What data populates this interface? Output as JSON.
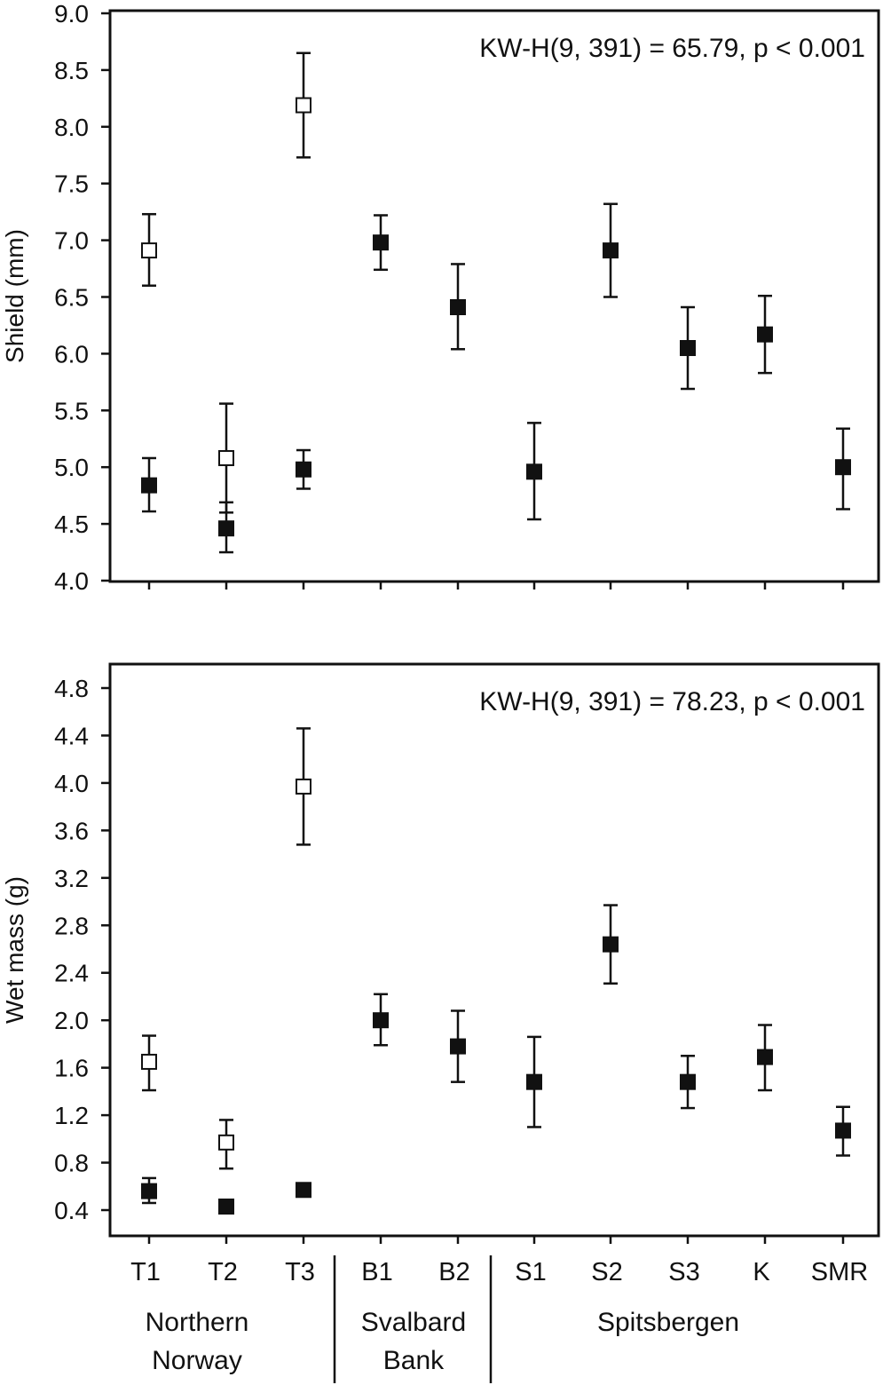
{
  "chart_data": [
    {
      "type": "scatter",
      "ylabel": "Shield (mm)",
      "ylim": [
        4.0,
        9.0
      ],
      "yticks": [
        "9.0",
        "8.5",
        "8.0",
        "7.5",
        "7.0",
        "6.5",
        "6.0",
        "5.5",
        "5.0",
        "4.5",
        "4.0"
      ],
      "annotation": "KW-H(9, 391) = 65.79, p < 0.001",
      "categories": [
        "T1",
        "T2",
        "T3",
        "B1",
        "B2",
        "S1",
        "S2",
        "S3",
        "K",
        "SMR"
      ],
      "series": [
        {
          "marker": "filled-square",
          "points": [
            {
              "x": "T1",
              "y": 4.84,
              "lo": 4.61,
              "hi": 5.08
            },
            {
              "x": "T2",
              "y": 4.46,
              "lo": 4.25,
              "hi": 4.69
            },
            {
              "x": "T3",
              "y": 4.98,
              "lo": 4.81,
              "hi": 5.15
            },
            {
              "x": "B1",
              "y": 6.98,
              "lo": 6.74,
              "hi": 7.22
            },
            {
              "x": "B2",
              "y": 6.41,
              "lo": 6.04,
              "hi": 6.79
            },
            {
              "x": "S1",
              "y": 4.96,
              "lo": 4.54,
              "hi": 5.39
            },
            {
              "x": "S2",
              "y": 6.91,
              "lo": 6.5,
              "hi": 7.32
            },
            {
              "x": "S3",
              "y": 6.05,
              "lo": 5.69,
              "hi": 6.41
            },
            {
              "x": "K",
              "y": 6.17,
              "lo": 5.83,
              "hi": 6.51
            },
            {
              "x": "SMR",
              "y": 5.0,
              "lo": 4.63,
              "hi": 5.34
            }
          ]
        },
        {
          "marker": "open-square",
          "points": [
            {
              "x": "T1",
              "y": 6.91,
              "lo": 6.6,
              "hi": 7.23
            },
            {
              "x": "T2",
              "y": 5.08,
              "lo": 4.6,
              "hi": 5.56
            },
            {
              "x": "T3",
              "y": 8.19,
              "lo": 7.73,
              "hi": 8.65
            }
          ]
        }
      ]
    },
    {
      "type": "scatter",
      "ylabel": "Wet mass (g)",
      "ylim": [
        0.2,
        5.0
      ],
      "yticks": [
        "4.8",
        "4.4",
        "4.0",
        "3.6",
        "3.2",
        "2.8",
        "2.4",
        "2.0",
        "1.6",
        "1.2",
        "0.8",
        "0.4"
      ],
      "annotation": "KW-H(9, 391) = 78.23, p < 0.001",
      "categories": [
        "T1",
        "T2",
        "T3",
        "B1",
        "B2",
        "S1",
        "S2",
        "S3",
        "K",
        "SMR"
      ],
      "series": [
        {
          "marker": "filled-square",
          "points": [
            {
              "x": "T1",
              "y": 0.56,
              "lo": 0.46,
              "hi": 0.67
            },
            {
              "x": "T2",
              "y": 0.43,
              "lo": 0.4,
              "hi": 0.47
            },
            {
              "x": "T3",
              "y": 0.57,
              "lo": 0.52,
              "hi": 0.62
            },
            {
              "x": "B1",
              "y": 2.0,
              "lo": 1.79,
              "hi": 2.22
            },
            {
              "x": "B2",
              "y": 1.78,
              "lo": 1.48,
              "hi": 2.08
            },
            {
              "x": "S1",
              "y": 1.48,
              "lo": 1.1,
              "hi": 1.86
            },
            {
              "x": "S2",
              "y": 2.64,
              "lo": 2.31,
              "hi": 2.97
            },
            {
              "x": "S3",
              "y": 1.48,
              "lo": 1.26,
              "hi": 1.7
            },
            {
              "x": "K",
              "y": 1.69,
              "lo": 1.41,
              "hi": 1.96
            },
            {
              "x": "SMR",
              "y": 1.07,
              "lo": 0.86,
              "hi": 1.27
            }
          ]
        },
        {
          "marker": "open-square",
          "points": [
            {
              "x": "T1",
              "y": 1.65,
              "lo": 1.41,
              "hi": 1.87
            },
            {
              "x": "T2",
              "y": 0.97,
              "lo": 0.75,
              "hi": 1.16
            },
            {
              "x": "T3",
              "y": 3.97,
              "lo": 3.48,
              "hi": 4.46
            }
          ]
        }
      ]
    }
  ],
  "groups": [
    {
      "line1": "Northern",
      "line2": "Norway"
    },
    {
      "line1": "Svalbard",
      "line2": "Bank"
    },
    {
      "line1": "Spitsbergen",
      "line2": ""
    }
  ]
}
